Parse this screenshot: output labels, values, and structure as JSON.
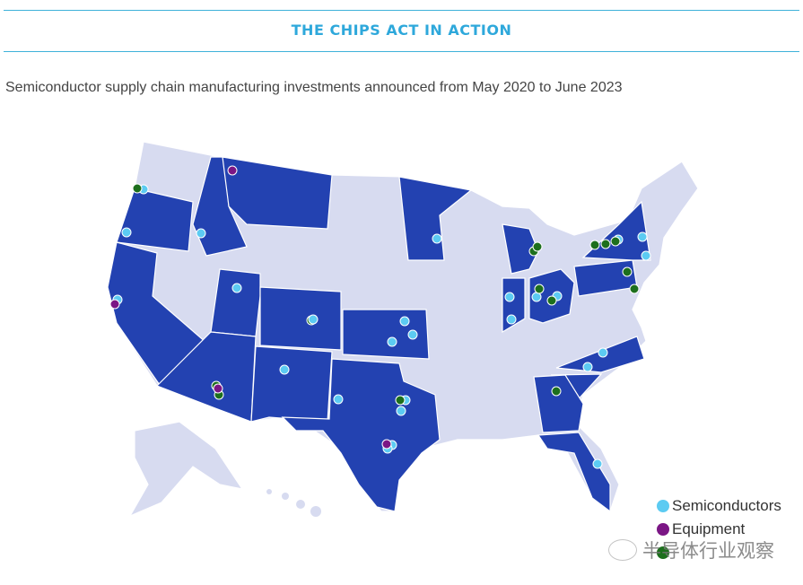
{
  "header": {
    "title": "THE CHIPS ACT IN ACTION"
  },
  "subtitle": "Semiconductor supply chain manufacturing investments announced from May 2020 to June 2023",
  "colors": {
    "state_default": "#d7dbf0",
    "state_highlight": "#2342b1",
    "semiconductors": "#5ccbf2",
    "equipment": "#7b1685",
    "materials": "#1d6f1d",
    "accent": "#2ea8db"
  },
  "legend": [
    {
      "label": "Semiconductors",
      "color": "#5ccbf2"
    },
    {
      "label": "Equipment",
      "color": "#7b1685"
    }
  ],
  "watermark": "半导体行业观察"
}
